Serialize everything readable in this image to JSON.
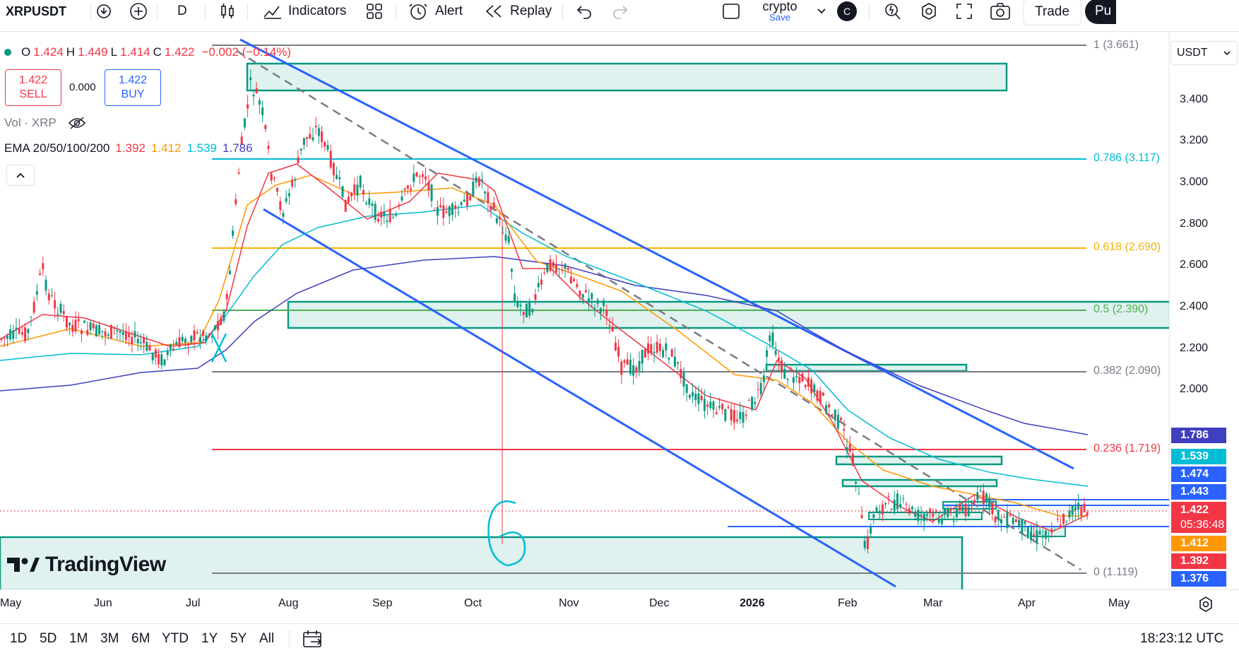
{
  "toolbar": {
    "symbol": "XRPUSDT",
    "interval": "D",
    "indicators_label": "Indicators",
    "alert_label": "Alert",
    "replay_label": "Replay",
    "layout_name": "crypto",
    "layout_save": "Save",
    "avatar_letter": "C",
    "trade_label": "Trade",
    "publish_label": "Pu"
  },
  "legend": {
    "o_label": "O",
    "o_value": "1.424",
    "h_label": "H",
    "h_value": "1.449",
    "l_label": "L",
    "l_value": "1.414",
    "c_label": "C",
    "c_value": "1.422",
    "change": "−0.002 (−0.14%)",
    "sell_price": "1.422",
    "sell_label": "SELL",
    "spread": "0.000",
    "buy_price": "1.422",
    "buy_label": "BUY",
    "vol_label": "Vol · XRP",
    "ema_label": "EMA 20/50/100/200",
    "ema20": "1.392",
    "ema50": "1.412",
    "ema100": "1.539",
    "ema200": "1.786"
  },
  "colors": {
    "ema20": "#f23645",
    "ema50": "#ff9800",
    "ema100": "#00bcd4",
    "ema200": "#3f3fbf",
    "up": "#089981",
    "down": "#f23645",
    "channel": "#2962ff",
    "zone": "#089981"
  },
  "price_scale": {
    "currency": "USDT",
    "ticks": [
      "3.400",
      "3.200",
      "3.000",
      "2.800",
      "2.600",
      "2.400",
      "2.200",
      "2.000"
    ],
    "tags": [
      {
        "value": "1.786",
        "color": "#3f3fbf"
      },
      {
        "value": "1.539",
        "color": "#00bcd4"
      },
      {
        "value": "1.474",
        "color": "#2962ff"
      },
      {
        "value": "1.443",
        "color": "#2962ff"
      },
      {
        "value": "1.422",
        "color": "#f23645"
      },
      {
        "value": "05:36:48",
        "color": "#f23645"
      },
      {
        "value": "1.412",
        "color": "#ff9800"
      },
      {
        "value": "1.392",
        "color": "#f23645"
      },
      {
        "value": "1.376",
        "color": "#2962ff"
      }
    ]
  },
  "fib_levels": [
    {
      "label": "1 (3.661)",
      "color": "#787b86"
    },
    {
      "label": "0.786 (3.117)",
      "color": "#00bcd4"
    },
    {
      "label": "0.618 (2.690)",
      "color": "#f5b400"
    },
    {
      "label": "0.5 (2.390)",
      "color": "#4caf50"
    },
    {
      "label": "0.382 (2.090)",
      "color": "#787b86"
    },
    {
      "label": "0.236 (1.719)",
      "color": "#f23645"
    },
    {
      "label": "0 (1.119)",
      "color": "#787b86"
    }
  ],
  "time_axis": [
    "May",
    "Jun",
    "Jul",
    "Aug",
    "Sep",
    "Oct",
    "Nov",
    "Dec",
    "2026",
    "Feb",
    "Mar",
    "Apr",
    "May"
  ],
  "annotation_text": "6",
  "watermark": "TradingView",
  "bottom": {
    "ranges": [
      "1D",
      "5D",
      "1M",
      "3M",
      "6M",
      "YTD",
      "1Y",
      "5Y",
      "All"
    ],
    "clock": "18:23:12 UTC"
  }
}
